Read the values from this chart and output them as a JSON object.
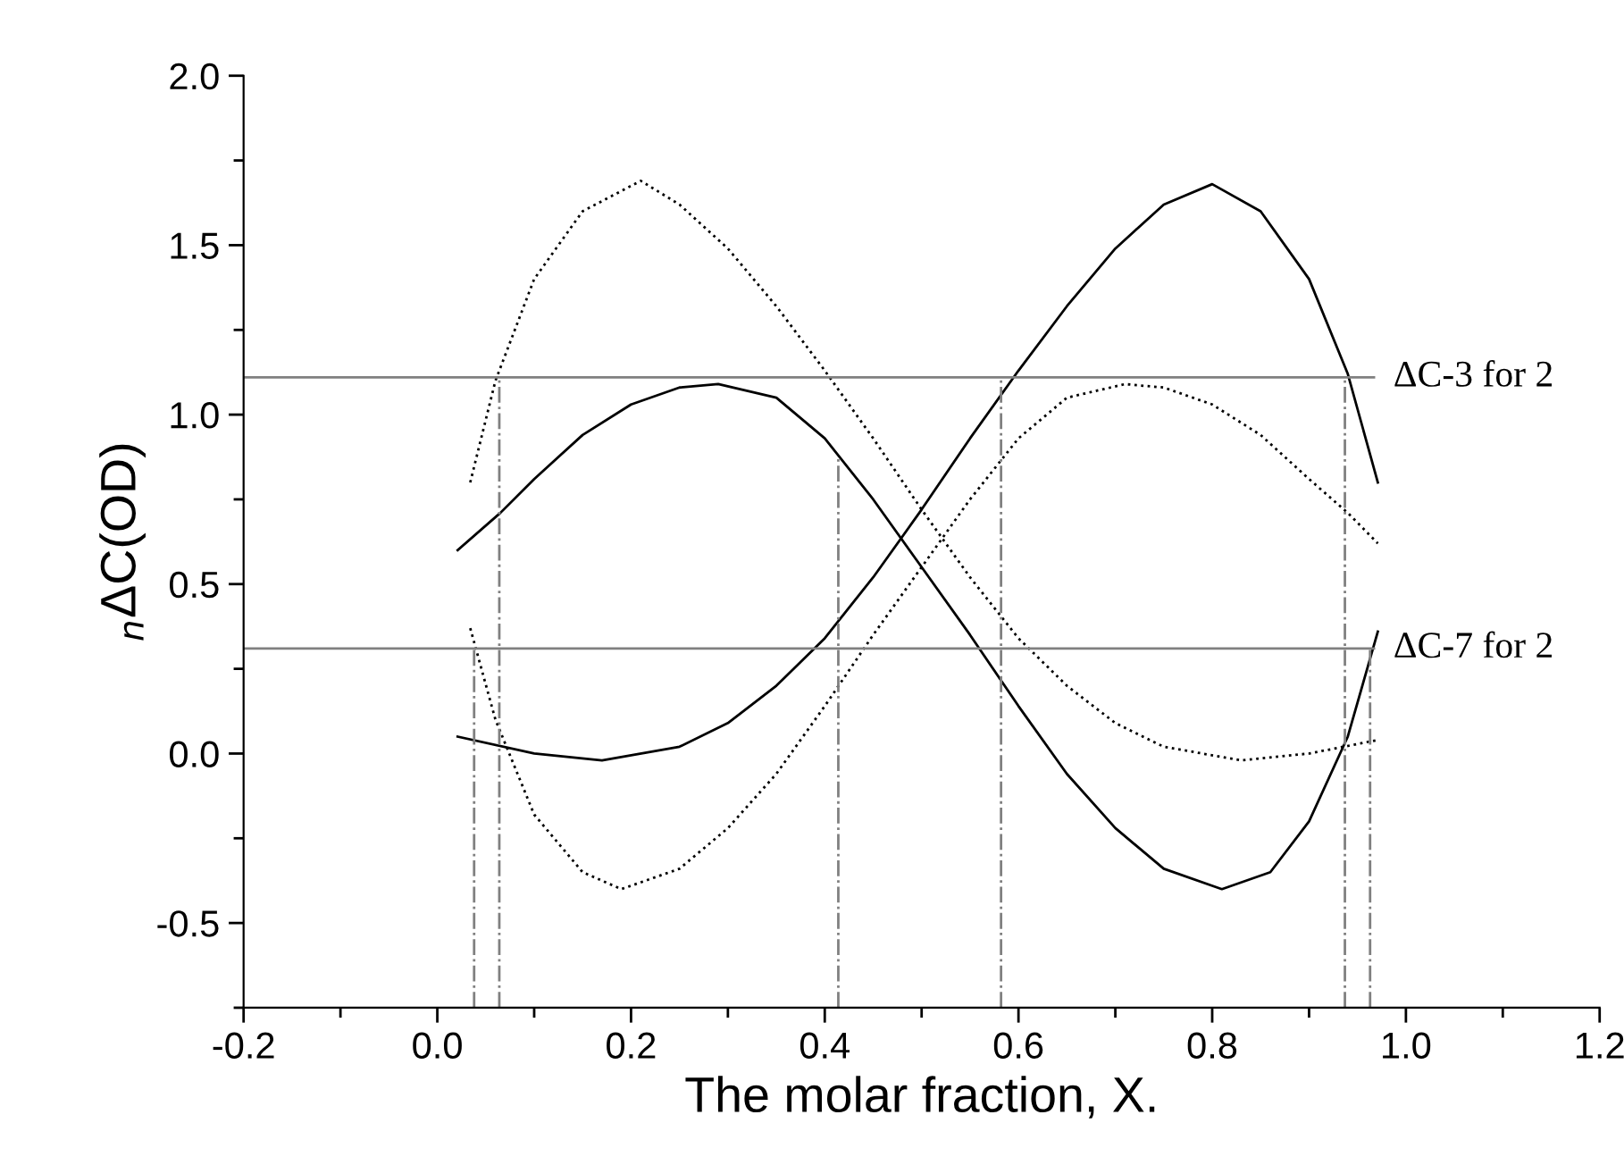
{
  "chart_data": {
    "type": "line",
    "xlabel": "The molar fraction, X.",
    "ylabel": "$_{n}$ΔC(OD)",
    "xlim": [
      -0.2,
      1.2
    ],
    "ylim": [
      -0.75,
      2.0
    ],
    "xticks": [
      -0.2,
      {
        "value": -0.1,
        "label": null
      },
      {
        "value": 0,
        "label": "0.0"
      },
      {
        "value": 0.1,
        "label": null
      },
      0.2,
      {
        "value": 0.3,
        "label": null
      },
      0.4,
      {
        "value": 0.5,
        "label": null
      },
      0.6,
      {
        "value": 0.7,
        "label": null
      },
      0.8,
      {
        "value": 0.9,
        "label": null
      },
      {
        "value": 1,
        "label": "1.0"
      },
      {
        "value": 1.1,
        "label": null
      },
      1.2
    ],
    "yticks": [
      {
        "value": -0.75,
        "label": null
      },
      -0.5,
      {
        "value": -0.25,
        "label": null
      },
      {
        "value": 0,
        "label": "0.0"
      },
      {
        "value": 0.25,
        "label": null
      },
      0.5,
      {
        "value": 0.75,
        "label": null
      },
      {
        "value": 1,
        "label": "1.0"
      },
      {
        "value": 1.25,
        "label": null
      },
      1.5,
      {
        "value": 1.75,
        "label": null
      },
      {
        "value": 2,
        "label": "2.0"
      }
    ],
    "grid": false,
    "legend": false,
    "marker": "none",
    "series": [
      {
        "color": "#000000",
        "line_style": "solid",
        "x": [
          0.021,
          0.1,
          0.17,
          0.25,
          0.3,
          0.35,
          0.4,
          0.45,
          0.5,
          0.55,
          0.6,
          0.65,
          0.7,
          0.75,
          0.8,
          0.85,
          0.9,
          0.94,
          0.971
        ],
        "values": [
          0.05,
          0.0,
          -0.02,
          0.02,
          0.09,
          0.2,
          0.34,
          0.52,
          0.72,
          0.93,
          1.13,
          1.32,
          1.49,
          1.62,
          1.68,
          1.6,
          1.4,
          1.12,
          0.8
        ]
      },
      {
        "color": "#000000",
        "line_style": "solid",
        "x": [
          0.021,
          0.065,
          0.1,
          0.15,
          0.2,
          0.25,
          0.29,
          0.35,
          0.4,
          0.45,
          0.5,
          0.55,
          0.6,
          0.65,
          0.7,
          0.75,
          0.81,
          0.86,
          0.9,
          0.94,
          0.971
        ],
        "values": [
          0.6,
          0.71,
          0.81,
          0.94,
          1.03,
          1.08,
          1.09,
          1.05,
          0.93,
          0.75,
          0.55,
          0.35,
          0.14,
          -0.06,
          -0.22,
          -0.34,
          -0.4,
          -0.35,
          -0.2,
          0.05,
          0.36
        ]
      },
      {
        "color": "#000000",
        "line_style": "dotted",
        "x": [
          0.034,
          0.06,
          0.1,
          0.15,
          0.21,
          0.25,
          0.3,
          0.35,
          0.4,
          0.45,
          0.5,
          0.55,
          0.6,
          0.65,
          0.7,
          0.75,
          0.83,
          0.9,
          0.971
        ],
        "values": [
          0.8,
          1.1,
          1.4,
          1.6,
          1.69,
          1.62,
          1.49,
          1.32,
          1.13,
          0.93,
          0.72,
          0.52,
          0.34,
          0.2,
          0.09,
          0.02,
          -0.02,
          0.0,
          0.04
        ]
      },
      {
        "color": "#000000",
        "line_style": "dotted",
        "x": [
          0.034,
          0.06,
          0.1,
          0.15,
          0.19,
          0.25,
          0.3,
          0.35,
          0.4,
          0.45,
          0.5,
          0.55,
          0.6,
          0.65,
          0.71,
          0.75,
          0.8,
          0.85,
          0.9,
          0.94,
          0.971
        ],
        "values": [
          0.37,
          0.1,
          -0.18,
          -0.35,
          -0.4,
          -0.34,
          -0.22,
          -0.06,
          0.14,
          0.35,
          0.55,
          0.75,
          0.93,
          1.05,
          1.09,
          1.08,
          1.03,
          0.94,
          0.81,
          0.71,
          0.62
        ]
      },
      {
        "name": "ΔC-3 for 2",
        "color": "#808080",
        "line_style": "solid",
        "x": [
          -0.2,
          0.967
        ],
        "values": [
          1.11,
          1.11
        ]
      },
      {
        "name": "ΔC-7 for 2",
        "color": "#808080",
        "line_style": "solid",
        "x": [
          -0.2,
          0.967
        ],
        "values": [
          0.31,
          0.31
        ]
      },
      {
        "color": "#808080",
        "line_style": "dashdot",
        "x": [
          0.038,
          0.038
        ],
        "values": [
          -0.75,
          0.31
        ]
      },
      {
        "color": "#808080",
        "line_style": "dashdot",
        "x": [
          0.064,
          0.064
        ],
        "values": [
          -0.75,
          1.11
        ]
      },
      {
        "color": "#808080",
        "line_style": "dashdot",
        "x": [
          0.414,
          0.414
        ],
        "values": [
          -0.75,
          0.87
        ]
      },
      {
        "color": "#808080",
        "line_style": "dashdot",
        "x": [
          0.582,
          0.582
        ],
        "values": [
          -0.75,
          1.11
        ]
      },
      {
        "color": "#808080",
        "line_style": "dashdot",
        "x": [
          0.937,
          0.937
        ],
        "values": [
          -0.75,
          1.11
        ]
      },
      {
        "color": "#808080",
        "line_style": "dashdot",
        "x": [
          0.963,
          0.963
        ],
        "values": [
          -0.75,
          0.31
        ]
      }
    ]
  }
}
